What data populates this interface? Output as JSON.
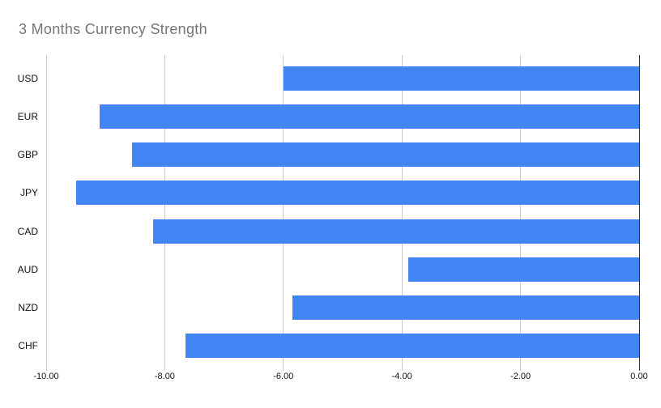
{
  "colors": {
    "bar": "#4285f4",
    "gridline": "#cccccc",
    "baseline": "#333333",
    "title": "#757575"
  },
  "chart_data": {
    "type": "bar",
    "orientation": "horizontal",
    "title": "3 Months Currency Strength",
    "categories": [
      "USD",
      "EUR",
      "GBP",
      "JPY",
      "CAD",
      "AUD",
      "NZD",
      "CHF"
    ],
    "values": [
      -6.0,
      -9.1,
      -8.55,
      -9.5,
      -8.2,
      -3.9,
      -5.85,
      -7.65
    ],
    "xlabel": "",
    "ylabel": "",
    "xlim": [
      -10,
      0
    ],
    "xticks": [
      -10,
      -8,
      -6,
      -4,
      -2,
      0
    ],
    "xtick_labels": [
      "-10.00",
      "-8.00",
      "-6.00",
      "-4.00",
      "-2.00",
      "0.00"
    ],
    "grid": true,
    "legend": false
  }
}
